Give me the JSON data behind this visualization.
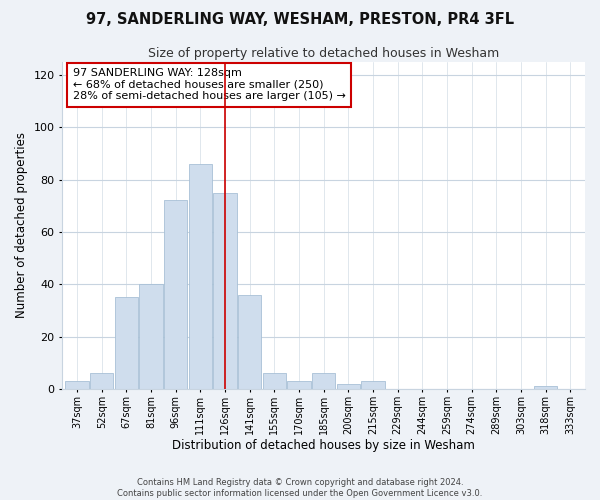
{
  "title": "97, SANDERLING WAY, WESHAM, PRESTON, PR4 3FL",
  "subtitle": "Size of property relative to detached houses in Wesham",
  "xlabel": "Distribution of detached houses by size in Wesham",
  "ylabel": "Number of detached properties",
  "footer_line1": "Contains HM Land Registry data © Crown copyright and database right 2024.",
  "footer_line2": "Contains public sector information licensed under the Open Government Licence v3.0.",
  "bin_labels": [
    "37sqm",
    "52sqm",
    "67sqm",
    "81sqm",
    "96sqm",
    "111sqm",
    "126sqm",
    "141sqm",
    "155sqm",
    "170sqm",
    "185sqm",
    "200sqm",
    "215sqm",
    "229sqm",
    "244sqm",
    "259sqm",
    "274sqm",
    "289sqm",
    "303sqm",
    "318sqm",
    "333sqm"
  ],
  "bar_heights": [
    3,
    6,
    35,
    40,
    72,
    86,
    75,
    36,
    6,
    3,
    6,
    2,
    3,
    0,
    0,
    0,
    0,
    0,
    0,
    1,
    0
  ],
  "bar_color": "#cfdded",
  "bar_edge_color": "#a8c0d6",
  "vline_x_index": 6,
  "vline_color": "#cc0000",
  "annotation_title": "97 SANDERLING WAY: 128sqm",
  "annotation_line1": "← 68% of detached houses are smaller (250)",
  "annotation_line2": "28% of semi-detached houses are larger (105) →",
  "annotation_box_facecolor": "#ffffff",
  "annotation_box_edgecolor": "#cc0000",
  "ylim": [
    0,
    125
  ],
  "yticks": [
    0,
    20,
    40,
    60,
    80,
    100,
    120
  ],
  "background_color": "#eef2f7",
  "plot_background_color": "#ffffff",
  "grid_color": "#c8d4e0"
}
